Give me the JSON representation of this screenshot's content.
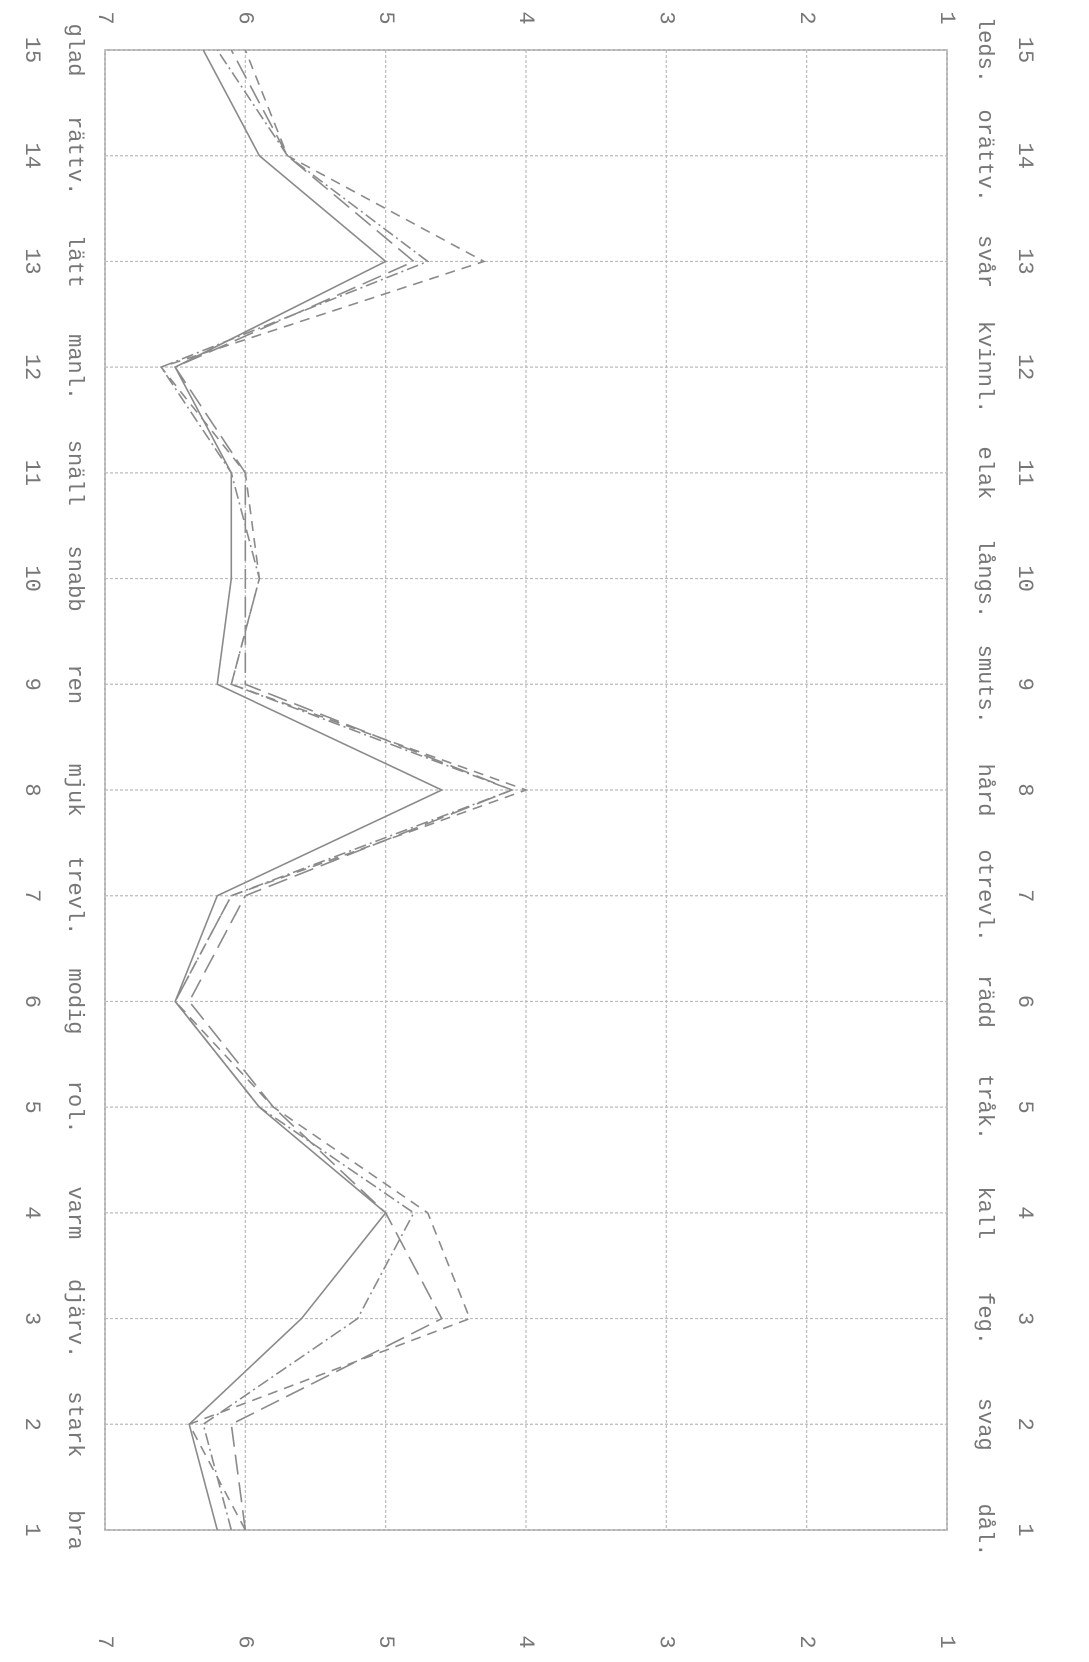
{
  "chart_data": {
    "type": "line",
    "x": [
      1,
      2,
      3,
      4,
      5,
      6,
      7,
      8,
      9,
      10,
      11,
      12,
      13,
      14,
      15
    ],
    "xlim": [
      1,
      15
    ],
    "xticks": [
      1,
      2,
      3,
      4,
      5,
      6,
      7,
      8,
      9,
      10,
      11,
      12,
      13,
      14,
      15
    ],
    "left_labels": [
      "bra",
      "stark",
      "djärv.",
      "varm",
      "rol.",
      "modig",
      "trevl.",
      "mjuk",
      "ren",
      "snabb",
      "snäll",
      "manl.",
      "lätt",
      "rättv.",
      "glad"
    ],
    "right_labels": [
      "dål.",
      "svag",
      "feg.",
      "kall",
      "tråk.",
      "rädd",
      "otrevl.",
      "hård",
      "smuts.",
      "långs.",
      "elak",
      "kvinnl.",
      "svår",
      "orättv.",
      "leds."
    ],
    "ylim": [
      1,
      7
    ],
    "yticks": [
      7,
      6,
      5,
      4,
      3,
      2,
      1
    ],
    "grid": true,
    "series": [
      {
        "color": "#8a8a8a",
        "dash": "none",
        "values": [
          6.2,
          6.4,
          5.6,
          5.0,
          5.9,
          6.5,
          6.2,
          4.6,
          6.2,
          6.1,
          6.1,
          6.5,
          5.0,
          5.9,
          6.3
        ]
      },
      {
        "color": "#8a8a8a",
        "dash": "10 7",
        "values": [
          6.0,
          6.4,
          4.4,
          4.7,
          5.8,
          6.5,
          6.1,
          4.0,
          6.1,
          5.9,
          6.0,
          6.6,
          4.3,
          5.7,
          6.0
        ]
      },
      {
        "color": "#8a8a8a",
        "dash": "12 4 2 4",
        "values": [
          6.1,
          6.3,
          5.2,
          4.8,
          5.9,
          6.5,
          6.1,
          4.1,
          6.1,
          5.9,
          6.1,
          6.6,
          4.7,
          5.7,
          6.2
        ]
      },
      {
        "color": "#8a8a8a",
        "dash": "20 8",
        "values": [
          6.0,
          6.1,
          4.6,
          5.0,
          5.8,
          6.4,
          6.0,
          4.1,
          6.0,
          6.0,
          6.0,
          6.5,
          4.8,
          5.7,
          6.1
        ]
      }
    ]
  }
}
